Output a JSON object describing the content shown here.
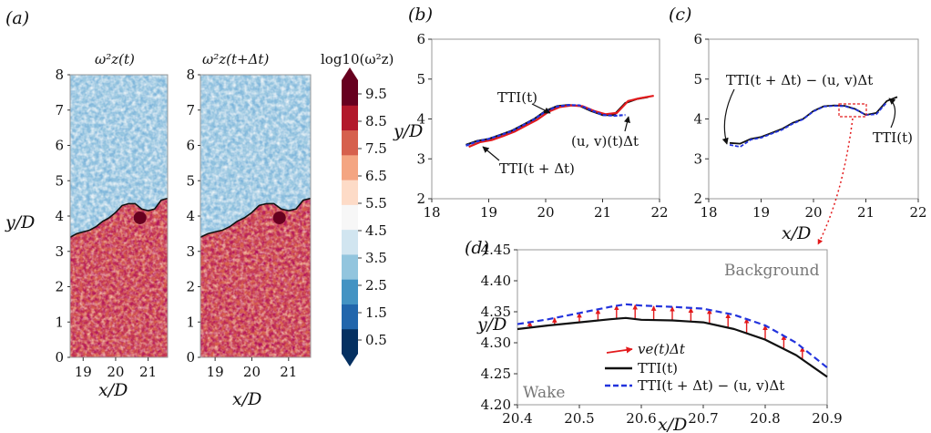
{
  "colors": {
    "wake_red": "#a50f15",
    "bg_blue": "#2b6cb0",
    "interface_black": "#111111",
    "interface_blue": "#2233dd",
    "interface_red": "#e31a1c",
    "arrow_red": "#e31a1c",
    "dashed_box": "#e31a1c"
  },
  "colormap": [
    "#053061",
    "#2166ac",
    "#4393c3",
    "#92c5de",
    "#d1e5f0",
    "#f7f7f7",
    "#fddbc7",
    "#f4a582",
    "#d6604d",
    "#b2182b",
    "#67001f"
  ],
  "panel_a": {
    "label": "(a)",
    "xlabel": "x/D",
    "ylabel": "y/D",
    "left_title": "ω²z(t)",
    "right_title": "ω²z(t+Δt)",
    "x_ticks": [
      "19",
      "20",
      "21"
    ],
    "y_ticks": [
      "0",
      "1",
      "2",
      "3",
      "4",
      "5",
      "6",
      "7",
      "8"
    ],
    "colorbar_title": "log10(ω²z)",
    "colorbar_ticks": [
      "0.5",
      "1.5",
      "2.5",
      "3.5",
      "4.5",
      "5.5",
      "6.5",
      "7.5",
      "8.5",
      "9.5"
    ]
  },
  "panel_b": {
    "label": "(b)",
    "ylabel": "y/D",
    "x_ticks": [
      "18",
      "19",
      "20",
      "21",
      "22"
    ],
    "y_ticks": [
      "2",
      "3",
      "4",
      "5",
      "6"
    ],
    "ann_tti_t": "TTI(t)",
    "ann_uv": "(u, v)(t)Δt",
    "ann_tti_tdt": "TTI(t + Δt)"
  },
  "panel_c": {
    "label": "(c)",
    "xlabel": "x/D",
    "x_ticks": [
      "18",
      "19",
      "20",
      "21",
      "22"
    ],
    "y_ticks": [
      "2",
      "3",
      "4",
      "5",
      "6"
    ],
    "ann_shifted": "TTI(t + Δt) − (u, v)Δt",
    "ann_tti_t": "TTI(t)"
  },
  "panel_d": {
    "label": "(d)",
    "xlabel": "x/D",
    "ylabel": "y/D",
    "x_ticks": [
      "20.4",
      "20.5",
      "20.6",
      "20.7",
      "20.8",
      "20.9"
    ],
    "y_ticks": [
      "4.20",
      "4.25",
      "4.30",
      "4.35",
      "4.40",
      "4.45"
    ],
    "background_label": "Background",
    "wake_label": "Wake",
    "legend_ve": "ve(t)Δt",
    "legend_tti": "TTI(t)",
    "legend_shifted": "TTI(t + Δt) − (u, v)Δt"
  },
  "chart_data": [
    {
      "type": "heatmap",
      "panel": "a",
      "x_range": [
        18.6,
        21.6
      ],
      "y_range": [
        0,
        8
      ],
      "color_range": [
        0.5,
        9.5
      ],
      "interface_y": [
        [
          18.6,
          3.4
        ],
        [
          18.8,
          3.5
        ],
        [
          19.0,
          3.55
        ],
        [
          19.2,
          3.6
        ],
        [
          19.4,
          3.7
        ],
        [
          19.6,
          3.85
        ],
        [
          19.8,
          3.95
        ],
        [
          20.0,
          4.1
        ],
        [
          20.2,
          4.3
        ],
        [
          20.4,
          4.35
        ],
        [
          20.6,
          4.35
        ],
        [
          20.8,
          4.2
        ],
        [
          21.0,
          4.15
        ],
        [
          21.2,
          4.2
        ],
        [
          21.4,
          4.45
        ],
        [
          21.6,
          4.5
        ]
      ]
    },
    {
      "type": "line",
      "panel": "b",
      "xlim": [
        18,
        22
      ],
      "ylim": [
        2,
        6
      ],
      "series": [
        {
          "name": "TTI(t)",
          "color": "#111111",
          "points": [
            [
              18.6,
              3.35
            ],
            [
              18.8,
              3.45
            ],
            [
              19.0,
              3.5
            ],
            [
              19.2,
              3.6
            ],
            [
              19.4,
              3.7
            ],
            [
              19.6,
              3.85
            ],
            [
              19.8,
              4.0
            ],
            [
              20.0,
              4.2
            ],
            [
              20.2,
              4.32
            ],
            [
              20.4,
              4.35
            ],
            [
              20.6,
              4.33
            ],
            [
              20.8,
              4.2
            ],
            [
              21.0,
              4.1
            ],
            [
              21.2,
              4.1
            ],
            [
              21.4,
              4.4
            ],
            [
              21.6,
              4.5
            ],
            [
              21.8,
              4.55
            ]
          ]
        },
        {
          "name": "TTI(t + Δt)",
          "color": "#e31a1c",
          "points": [
            [
              18.65,
              3.3
            ],
            [
              18.85,
              3.42
            ],
            [
              19.05,
              3.47
            ],
            [
              19.25,
              3.57
            ],
            [
              19.45,
              3.68
            ],
            [
              19.65,
              3.83
            ],
            [
              19.85,
              3.98
            ],
            [
              20.05,
              4.18
            ],
            [
              20.25,
              4.3
            ],
            [
              20.45,
              4.34
            ],
            [
              20.65,
              4.32
            ],
            [
              20.85,
              4.2
            ],
            [
              21.05,
              4.12
            ],
            [
              21.25,
              4.15
            ],
            [
              21.45,
              4.45
            ],
            [
              21.65,
              4.52
            ],
            [
              21.9,
              4.58
            ]
          ]
        },
        {
          "name": "(u, v)(t)Δt",
          "color": "#2233dd",
          "points": [
            [
              18.6,
              3.33
            ],
            [
              18.8,
              3.44
            ],
            [
              19.0,
              3.5
            ],
            [
              19.2,
              3.59
            ],
            [
              19.4,
              3.69
            ],
            [
              19.6,
              3.84
            ],
            [
              19.8,
              3.99
            ],
            [
              20.0,
              4.19
            ],
            [
              20.2,
              4.31
            ],
            [
              20.4,
              4.35
            ],
            [
              20.6,
              4.34
            ],
            [
              20.8,
              4.22
            ],
            [
              21.0,
              4.1
            ],
            [
              21.2,
              4.08
            ],
            [
              21.4,
              4.1
            ]
          ]
        }
      ]
    },
    {
      "type": "line",
      "panel": "c",
      "xlim": [
        18,
        22
      ],
      "ylim": [
        2,
        6
      ],
      "series": [
        {
          "name": "TTI(t)",
          "color": "#111111",
          "points": [
            [
              18.4,
              3.4
            ],
            [
              18.6,
              3.38
            ],
            [
              18.8,
              3.5
            ],
            [
              19.0,
              3.55
            ],
            [
              19.2,
              3.65
            ],
            [
              19.4,
              3.75
            ],
            [
              19.6,
              3.9
            ],
            [
              19.8,
              4.0
            ],
            [
              20.0,
              4.2
            ],
            [
              20.2,
              4.32
            ],
            [
              20.4,
              4.34
            ],
            [
              20.6,
              4.33
            ],
            [
              20.8,
              4.25
            ],
            [
              21.0,
              4.1
            ],
            [
              21.2,
              4.15
            ],
            [
              21.4,
              4.45
            ],
            [
              21.6,
              4.55
            ]
          ]
        },
        {
          "name": "TTI(t + Δt) − (u, v)Δt",
          "color": "#2233dd",
          "points": [
            [
              18.4,
              3.35
            ],
            [
              18.6,
              3.3
            ],
            [
              18.8,
              3.48
            ],
            [
              19.0,
              3.53
            ],
            [
              19.2,
              3.63
            ],
            [
              19.4,
              3.73
            ],
            [
              19.6,
              3.88
            ],
            [
              19.8,
              3.99
            ],
            [
              20.0,
              4.19
            ],
            [
              20.2,
              4.31
            ],
            [
              20.4,
              4.33
            ],
            [
              20.6,
              4.32
            ],
            [
              20.8,
              4.24
            ],
            [
              21.0,
              4.1
            ],
            [
              21.2,
              4.12
            ],
            [
              21.4,
              4.42
            ]
          ]
        }
      ]
    },
    {
      "type": "line",
      "panel": "d",
      "xlim": [
        20.4,
        20.9
      ],
      "ylim": [
        4.2,
        4.45
      ],
      "series": [
        {
          "name": "TTI(t)",
          "color": "#111111",
          "points": [
            [
              20.4,
              4.322
            ],
            [
              20.45,
              4.328
            ],
            [
              20.5,
              4.333
            ],
            [
              20.55,
              4.338
            ],
            [
              20.575,
              4.34
            ],
            [
              20.6,
              4.337
            ],
            [
              20.65,
              4.336
            ],
            [
              20.7,
              4.333
            ],
            [
              20.75,
              4.322
            ],
            [
              20.8,
              4.305
            ],
            [
              20.85,
              4.28
            ],
            [
              20.9,
              4.245
            ]
          ]
        },
        {
          "name": "TTI(t + Δt) − (u, v)Δt",
          "color": "#2233dd",
          "points": [
            [
              20.4,
              4.33
            ],
            [
              20.45,
              4.338
            ],
            [
              20.5,
              4.348
            ],
            [
              20.55,
              4.358
            ],
            [
              20.575,
              4.362
            ],
            [
              20.6,
              4.36
            ],
            [
              20.65,
              4.358
            ],
            [
              20.7,
              4.355
            ],
            [
              20.75,
              4.345
            ],
            [
              20.8,
              4.328
            ],
            [
              20.85,
              4.3
            ],
            [
              20.9,
              4.26
            ]
          ]
        }
      ],
      "arrows": [
        {
          "x": 20.42,
          "y0": 4.324,
          "y1": 4.334
        },
        {
          "x": 20.46,
          "y0": 4.329,
          "y1": 4.34
        },
        {
          "x": 20.5,
          "y0": 4.333,
          "y1": 4.348
        },
        {
          "x": 20.53,
          "y0": 4.336,
          "y1": 4.354
        },
        {
          "x": 20.56,
          "y0": 4.339,
          "y1": 4.36
        },
        {
          "x": 20.59,
          "y0": 4.338,
          "y1": 4.361
        },
        {
          "x": 20.62,
          "y0": 4.337,
          "y1": 4.359
        },
        {
          "x": 20.65,
          "y0": 4.336,
          "y1": 4.358
        },
        {
          "x": 20.68,
          "y0": 4.334,
          "y1": 4.356
        },
        {
          "x": 20.71,
          "y0": 4.331,
          "y1": 4.354
        },
        {
          "x": 20.74,
          "y0": 4.324,
          "y1": 4.347
        },
        {
          "x": 20.77,
          "y0": 4.316,
          "y1": 4.339
        },
        {
          "x": 20.8,
          "y0": 4.305,
          "y1": 4.328
        },
        {
          "x": 20.83,
          "y0": 4.291,
          "y1": 4.312
        },
        {
          "x": 20.86,
          "y0": 4.274,
          "y1": 4.293
        }
      ]
    }
  ]
}
